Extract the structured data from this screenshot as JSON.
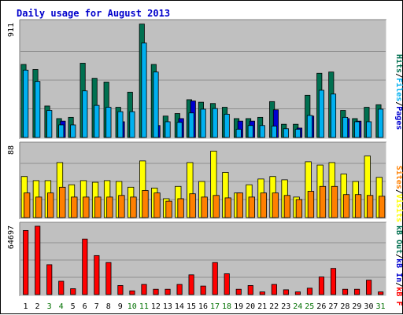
{
  "chart_data": {
    "type": "bar",
    "title": "Daily usage for August 2013",
    "categories": [
      "1",
      "2",
      "3",
      "4",
      "5",
      "6",
      "7",
      "8",
      "9",
      "10",
      "11",
      "12",
      "13",
      "14",
      "15",
      "16",
      "17",
      "18",
      "19",
      "20",
      "21",
      "22",
      "23",
      "24",
      "25",
      "26",
      "27",
      "28",
      "29",
      "30",
      "31"
    ],
    "weekend_days": [
      "3",
      "4",
      "10",
      "11",
      "17",
      "18",
      "24",
      "25",
      "31"
    ],
    "colors": {
      "title": "#0000cc",
      "weekday_label": "#000000",
      "weekend_label": "#007000",
      "plot_bg": "#c0c0c0",
      "hits": "#007050",
      "files": "#00b0f0",
      "pages": "#0000d0",
      "visits": "#ffff00",
      "sites": "#ff8000",
      "kbf": "#ff0000"
    },
    "panels": [
      {
        "id": "top",
        "max_label": "911",
        "ylim": [
          0,
          911
        ],
        "legend": [
          {
            "label": "Pages",
            "color": "#0000d0"
          },
          {
            "label": "Files",
            "color": "#00b0f0"
          },
          {
            "label": "Hits",
            "color": "#007050"
          }
        ],
        "series": [
          {
            "name": "Hits",
            "color": "#007050",
            "values": [
              580,
              540,
              250,
              150,
              160,
              590,
              470,
              440,
              240,
              360,
              901,
              580,
              170,
              190,
              300,
              280,
              270,
              240,
              150,
              150,
              160,
              285,
              105,
              105,
              335,
              510,
              520,
              215,
              150,
              240,
              260
            ]
          },
          {
            "name": "Files",
            "color": "#00b0f0",
            "values": [
              535,
              445,
              215,
              100,
              100,
              370,
              255,
              240,
              205,
              205,
              750,
              520,
              125,
              120,
              195,
              225,
              230,
              185,
              65,
              95,
              95,
              90,
              70,
              65,
              175,
              375,
              345,
              160,
              125,
              125,
              225
            ]
          },
          {
            "name": "Pages",
            "color": "#0000d0",
            "values": [
              0,
              0,
              0,
              130,
              0,
              0,
              0,
              0,
              125,
              0,
              0,
              95,
              0,
              150,
              290,
              0,
              0,
              0,
              130,
              130,
              0,
              220,
              0,
              75,
              170,
              0,
              0,
              150,
              130,
              0,
              0
            ]
          }
        ]
      },
      {
        "id": "middle",
        "max_label": "88",
        "ylim": [
          0,
          88
        ],
        "legend": [
          {
            "label": "Visits",
            "color": "#ffff00"
          },
          {
            "label": "Sites",
            "color": "#ff8000"
          }
        ],
        "series": [
          {
            "name": "Visits",
            "color": "#ffff00",
            "values": [
              50,
              45,
              45,
              67,
              40,
              45,
              43,
              45,
              44,
              37,
              69,
              36,
              23,
              38,
              67,
              44,
              81,
              55,
              30,
              40,
              47,
              50,
              46,
              25,
              68,
              64,
              67,
              53,
              44,
              75,
              49
            ]
          },
          {
            "name": "Sites",
            "color": "#ff8000",
            "values": [
              30,
              25,
              30,
              37,
              25,
              25,
              25,
              25,
              27,
              25,
              33,
              30,
              20,
              23,
              29,
              25,
              27,
              24,
              30,
              25,
              30,
              30,
              27,
              22,
              32,
              38,
              38,
              28,
              28,
              27,
              26
            ]
          }
        ]
      },
      {
        "id": "bottom",
        "max_label": "64697",
        "ylim": [
          0,
          64697
        ],
        "legend": [
          {
            "label": "kB F",
            "color": "#ff0000"
          },
          {
            "label": "kB In",
            "color": "#0000d0"
          },
          {
            "label": "kB Out",
            "color": "#007050"
          }
        ],
        "series": [
          {
            "name": "kB F",
            "color": "#ff0000",
            "values": [
              60000,
              64000,
              28000,
              12500,
              5500,
              52000,
              36500,
              30000,
              8500,
              3500,
              9500,
              5000,
              5000,
              9500,
              18500,
              8000,
              30000,
              19500,
              5000,
              8500,
              2500,
              9500,
              4500,
              2500,
              6000,
              16500,
              24500,
              5000,
              5000,
              13500,
              2500
            ]
          }
        ]
      }
    ]
  }
}
